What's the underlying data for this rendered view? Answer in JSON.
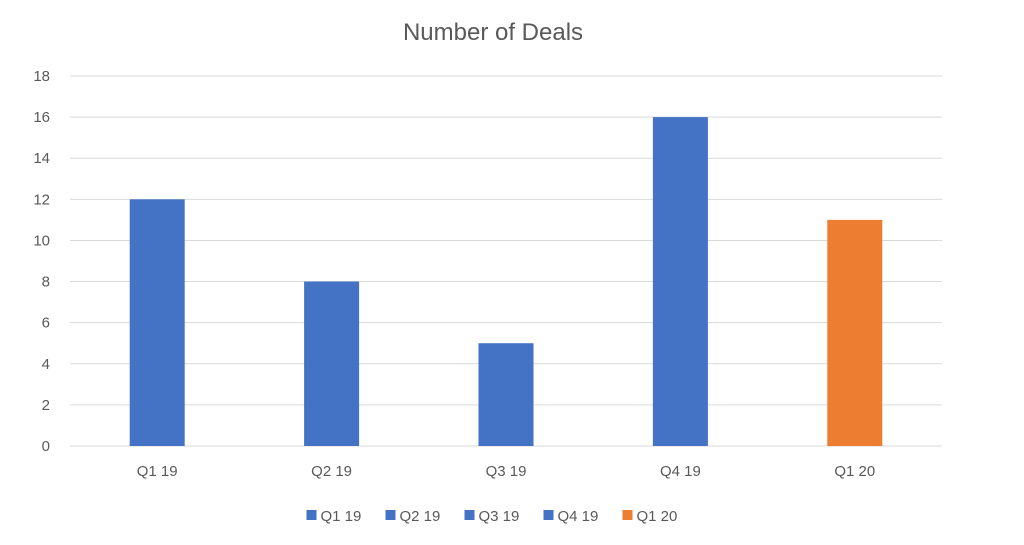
{
  "chart_data": {
    "type": "bar",
    "title": "Number of Deals",
    "xlabel": "",
    "ylabel": "",
    "categories": [
      "Q1 19",
      "Q2 19",
      "Q3 19",
      "Q4 19",
      "Q1 20"
    ],
    "values": [
      12,
      8,
      5,
      16,
      11
    ],
    "bar_colors": [
      "#4472C4",
      "#4472C4",
      "#4472C4",
      "#4472C4",
      "#ED7D31"
    ],
    "ylim": [
      0,
      18
    ],
    "yticks": [
      0,
      2,
      4,
      6,
      8,
      10,
      12,
      14,
      16,
      18
    ],
    "grid": true,
    "legend": {
      "position": "bottom",
      "entries": [
        {
          "label": "Q1 19",
          "color": "#4472C4"
        },
        {
          "label": "Q2 19",
          "color": "#4472C4"
        },
        {
          "label": "Q3 19",
          "color": "#4472C4"
        },
        {
          "label": "Q4 19",
          "color": "#4472C4"
        },
        {
          "label": "Q1 20",
          "color": "#ED7D31"
        }
      ]
    }
  }
}
